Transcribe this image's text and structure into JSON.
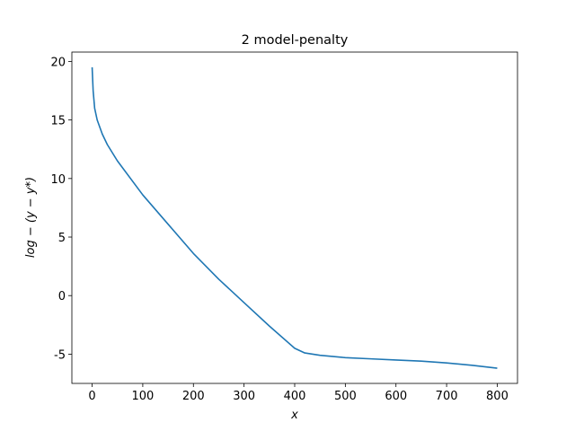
{
  "chart_data": {
    "type": "line",
    "title": "2 model-penalty",
    "x_label": "x",
    "y_label": "log − (y − y*)",
    "xlim": [
      -40,
      840
    ],
    "ylim": [
      -7.5,
      20.8
    ],
    "xticks": [
      0,
      100,
      200,
      300,
      400,
      500,
      600,
      700,
      800
    ],
    "yticks": [
      -5,
      0,
      5,
      10,
      15,
      20
    ],
    "series": [
      {
        "color": "#1f77b4",
        "x": [
          0,
          2,
          5,
          10,
          20,
          30,
          50,
          100,
          150,
          200,
          250,
          300,
          350,
          400,
          420,
          450,
          500,
          550,
          600,
          650,
          700,
          750,
          800
        ],
        "values": [
          19.5,
          17.5,
          16,
          15,
          13.8,
          12.9,
          11.5,
          8.6,
          6.1,
          3.6,
          1.4,
          -0.6,
          -2.6,
          -4.5,
          -4.9,
          -5.1,
          -5.3,
          -5.4,
          -5.5,
          -5.6,
          -5.75,
          -5.95,
          -6.2
        ]
      }
    ]
  }
}
